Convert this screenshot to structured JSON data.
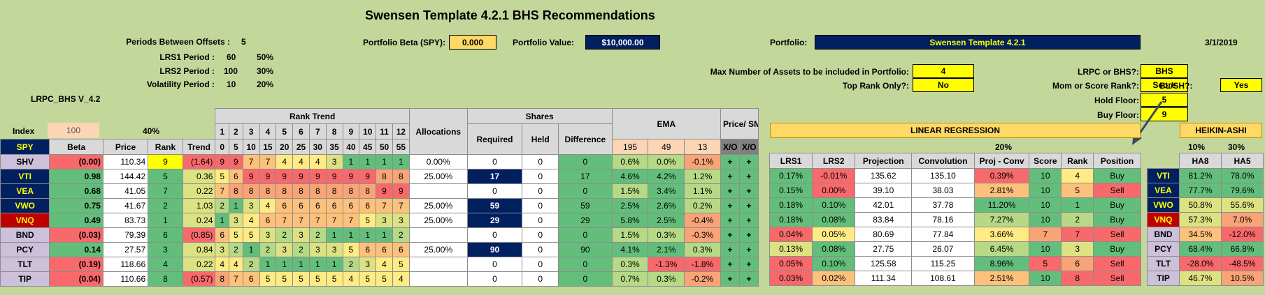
{
  "title": "Swensen Template 4.2.1 BHS Recommendations",
  "periods_label": "Periods Between Offsets :",
  "periods_value": "5",
  "lrs1_label": "LRS1 Period :",
  "lrs1_value": "60",
  "lrs1_pct": "50%",
  "lrs2_label": "LRS2 Period :",
  "lrs2_value": "100",
  "lrs2_pct": "30%",
  "vol_label": "Volatility Period :",
  "vol_value": "10",
  "vol_pct": "20%",
  "version": "LRPC_BHS V_4.2",
  "beta_label": "Portfolio Beta (SPY):",
  "beta_value": "0.000",
  "value_label": "Portfolio Value:",
  "value_value": "$10,000.00",
  "portfolio_label": "Portfolio:",
  "portfolio_name": "Swensen Template 4.2.1",
  "date": "3/1/2019",
  "max_assets_label": "Max Number of Assets to be included in Portfolio:",
  "max_assets": "4",
  "top_rank_label": "Top Rank Only?:",
  "top_rank": "No",
  "lrpc_label": "LRPC or BHS?:",
  "lrpc": "BHS",
  "mom_label": "Mom or Score Rank?:",
  "mom": "Score",
  "hold_label": "Hold Floor:",
  "hold": "5",
  "buy_label": "Buy Floor:",
  "buy": "9",
  "blsh_label": "BL/SH?:",
  "blsh": "Yes",
  "index_label": "Index",
  "index_value": "100",
  "pct40": "40%",
  "left_headers": {
    "beta": "Beta",
    "price": "Price",
    "rank": "Rank",
    "trend": "Trend",
    "rank_trend": "Rank Trend",
    "alloc": "Allocations",
    "shares": "Shares",
    "required": "Required",
    "held": "Held",
    "difference": "Difference",
    "ema": "EMA",
    "price_sma": "Price/ SMA",
    "xo": "X/O"
  },
  "spy": "SPY",
  "rank_trend_nums": [
    "1",
    "2",
    "3",
    "4",
    "5",
    "6",
    "7",
    "8",
    "9",
    "10",
    "11",
    "12"
  ],
  "rank_trend_days": [
    "0",
    "5",
    "10",
    "15",
    "20",
    "25",
    "30",
    "35",
    "40",
    "45",
    "50",
    "55"
  ],
  "ema_periods": [
    "195",
    "49",
    "13"
  ],
  "rows": [
    {
      "ticker": "SHV",
      "beta": "(0.00)",
      "price": "110.34",
      "rank": "9",
      "trend": "(1.64)",
      "rt": [
        "9",
        "9",
        "7",
        "7",
        "4",
        "4",
        "4",
        "3",
        "1",
        "1",
        "1",
        "1"
      ],
      "alloc": "0.00%",
      "req": "0",
      "held": "0",
      "diff": "0",
      "ema": [
        "0.6%",
        "0.0%",
        "-0.1%"
      ],
      "xo1": "+",
      "xo2": "+"
    },
    {
      "ticker": "VTI",
      "beta": "0.98",
      "price": "144.42",
      "rank": "5",
      "trend": "0.36",
      "rt": [
        "5",
        "6",
        "9",
        "9",
        "9",
        "9",
        "9",
        "9",
        "9",
        "9",
        "8",
        "8"
      ],
      "alloc": "25.00%",
      "req": "17",
      "held": "0",
      "diff": "17",
      "ema": [
        "4.6%",
        "4.2%",
        "1.2%"
      ],
      "xo1": "+",
      "xo2": "+"
    },
    {
      "ticker": "VEA",
      "beta": "0.68",
      "price": "41.05",
      "rank": "7",
      "trend": "0.22",
      "rt": [
        "7",
        "8",
        "8",
        "8",
        "8",
        "8",
        "8",
        "8",
        "8",
        "8",
        "9",
        "9"
      ],
      "alloc": "",
      "req": "0",
      "held": "0",
      "diff": "0",
      "ema": [
        "1.5%",
        "3.4%",
        "1.1%"
      ],
      "xo1": "+",
      "xo2": "+"
    },
    {
      "ticker": "VWO",
      "beta": "0.75",
      "price": "41.67",
      "rank": "2",
      "trend": "1.03",
      "rt": [
        "2",
        "1",
        "3",
        "4",
        "6",
        "6",
        "6",
        "6",
        "6",
        "6",
        "7",
        "7"
      ],
      "alloc": "25.00%",
      "req": "59",
      "held": "0",
      "diff": "59",
      "ema": [
        "2.5%",
        "2.6%",
        "0.2%"
      ],
      "xo1": "+",
      "xo2": "+"
    },
    {
      "ticker": "VNQ",
      "beta": "0.49",
      "price": "83.73",
      "rank": "1",
      "trend": "0.24",
      "rt": [
        "1",
        "3",
        "4",
        "6",
        "7",
        "7",
        "7",
        "7",
        "7",
        "5",
        "3",
        "3"
      ],
      "alloc": "25.00%",
      "req": "29",
      "held": "0",
      "diff": "29",
      "ema": [
        "5.8%",
        "2.5%",
        "-0.4%"
      ],
      "xo1": "+",
      "xo2": "+"
    },
    {
      "ticker": "BND",
      "beta": "(0.03)",
      "price": "79.39",
      "rank": "6",
      "trend": "(0.85)",
      "rt": [
        "6",
        "5",
        "5",
        "3",
        "2",
        "3",
        "2",
        "1",
        "1",
        "1",
        "1",
        "2"
      ],
      "alloc": "",
      "req": "0",
      "held": "0",
      "diff": "0",
      "ema": [
        "1.5%",
        "0.3%",
        "-0.3%"
      ],
      "xo1": "+",
      "xo2": "+"
    },
    {
      "ticker": "PCY",
      "beta": "0.14",
      "price": "27.57",
      "rank": "3",
      "trend": "0.84",
      "rt": [
        "3",
        "2",
        "1",
        "2",
        "3",
        "2",
        "3",
        "3",
        "5",
        "6",
        "6",
        "6"
      ],
      "alloc": "25.00%",
      "req": "90",
      "held": "0",
      "diff": "90",
      "ema": [
        "4.1%",
        "2.1%",
        "0.3%"
      ],
      "xo1": "+",
      "xo2": "+"
    },
    {
      "ticker": "TLT",
      "beta": "(0.19)",
      "price": "118.66",
      "rank": "4",
      "trend": "0.22",
      "rt": [
        "4",
        "4",
        "2",
        "1",
        "1",
        "1",
        "1",
        "1",
        "2",
        "3",
        "4",
        "5"
      ],
      "alloc": "",
      "req": "0",
      "held": "0",
      "diff": "0",
      "ema": [
        "0.3%",
        "-1.3%",
        "-1.8%"
      ],
      "xo1": "+",
      "xo2": "+"
    },
    {
      "ticker": "TIP",
      "beta": "(0.04)",
      "price": "110.66",
      "rank": "8",
      "trend": "(0.57)",
      "rt": [
        "8",
        "7",
        "6",
        "5",
        "5",
        "5",
        "5",
        "5",
        "4",
        "5",
        "5",
        "4"
      ],
      "alloc": "",
      "req": "0",
      "held": "0",
      "diff": "0",
      "ema": [
        "0.7%",
        "0.3%",
        "-0.2%"
      ],
      "xo1": "+",
      "xo2": "+"
    }
  ],
  "lr_title": "LINEAR REGRESSION",
  "lr_pct": "20%",
  "lr_headers": {
    "lrs1": "LRS1",
    "lrs2": "LRS2",
    "proj": "Projection",
    "conv": "Convolution",
    "pc": "Proj - Conv",
    "score": "Score",
    "rank": "Rank",
    "pos": "Position"
  },
  "lr_rows": [
    {
      "lrs1": "0.17%",
      "lrs2": "-0.01%",
      "proj": "135.62",
      "conv": "135.10",
      "pc": "0.39%",
      "score": "10",
      "rank": "4",
      "pos": "Buy",
      "t": "VTI"
    },
    {
      "lrs1": "0.15%",
      "lrs2": "0.00%",
      "proj": "39.10",
      "conv": "38.03",
      "pc": "2.81%",
      "score": "10",
      "rank": "5",
      "pos": "Sell",
      "t": "VEA"
    },
    {
      "lrs1": "0.18%",
      "lrs2": "0.10%",
      "proj": "42.01",
      "conv": "37.78",
      "pc": "11.20%",
      "score": "10",
      "rank": "1",
      "pos": "Buy",
      "t": "VWO"
    },
    {
      "lrs1": "0.18%",
      "lrs2": "0.08%",
      "proj": "83.84",
      "conv": "78.16",
      "pc": "7.27%",
      "score": "10",
      "rank": "2",
      "pos": "Buy",
      "t": "VNQ"
    },
    {
      "lrs1": "0.04%",
      "lrs2": "0.05%",
      "proj": "80.69",
      "conv": "77.84",
      "pc": "3.66%",
      "score": "7",
      "rank": "7",
      "pos": "Sell",
      "t": "BND"
    },
    {
      "lrs1": "0.13%",
      "lrs2": "0.08%",
      "proj": "27.75",
      "conv": "26.07",
      "pc": "6.45%",
      "score": "10",
      "rank": "3",
      "pos": "Buy",
      "t": "PCY"
    },
    {
      "lrs1": "0.05%",
      "lrs2": "0.10%",
      "proj": "125.58",
      "conv": "115.25",
      "pc": "8.96%",
      "score": "5",
      "rank": "6",
      "pos": "Sell",
      "t": "TLT"
    },
    {
      "lrs1": "0.03%",
      "lrs2": "0.02%",
      "proj": "111.34",
      "conv": "108.61",
      "pc": "2.51%",
      "score": "10",
      "rank": "8",
      "pos": "Sell",
      "t": "TIP"
    }
  ],
  "ha_title": "HEIKIN-ASHI",
  "ha_pcts": [
    "10%",
    "30%"
  ],
  "ha_headers": [
    "HA8",
    "HA5"
  ],
  "ha_rows": [
    [
      "81.2%",
      "78.0%"
    ],
    [
      "77.7%",
      "79.6%"
    ],
    [
      "50.8%",
      "55.6%"
    ],
    [
      "57.3%",
      "7.0%"
    ],
    [
      "34.5%",
      "-12.0%"
    ],
    [
      "68.4%",
      "66.8%"
    ],
    [
      "-28.0%",
      "-48.5%"
    ],
    [
      "46.7%",
      "10.5%"
    ]
  ]
}
